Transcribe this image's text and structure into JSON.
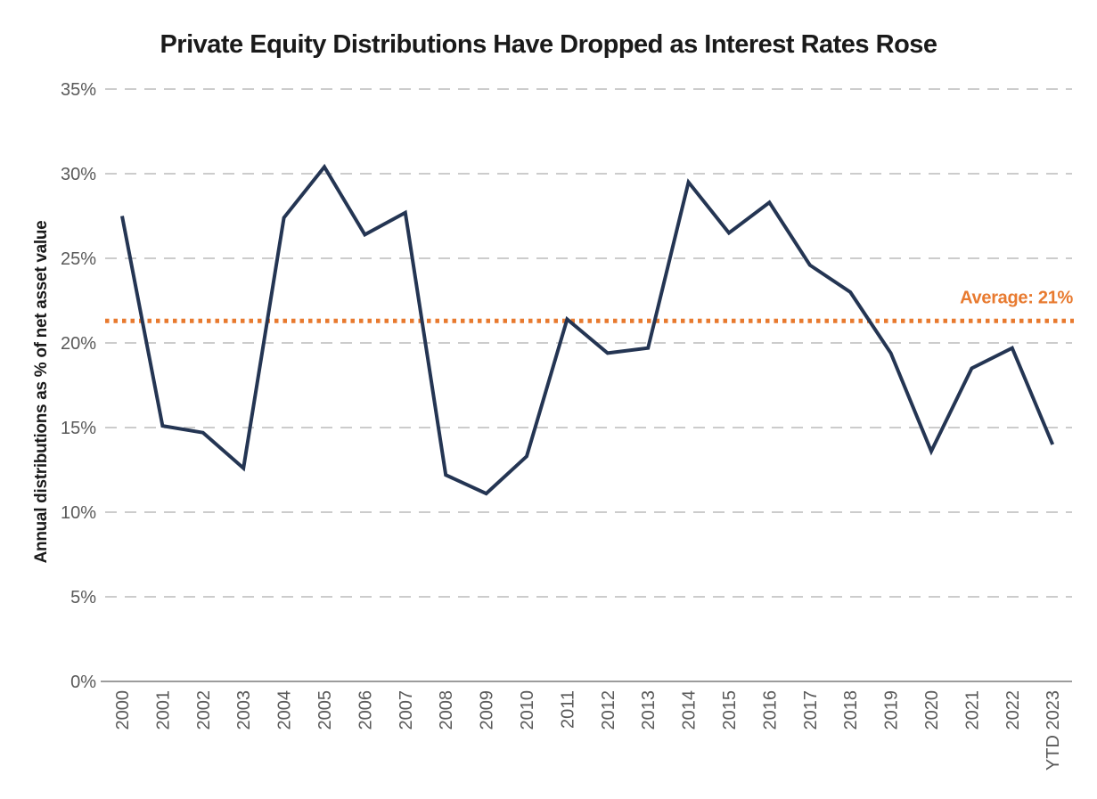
{
  "chart_data": {
    "type": "line",
    "title": "Private Equity Distributions Have Dropped as Interest Rates Rose",
    "ylabel": "Annual distributions as % of net asset value",
    "xlabel": "",
    "categories": [
      "2000",
      "2001",
      "2002",
      "2003",
      "2004",
      "2005",
      "2006",
      "2007",
      "2008",
      "2009",
      "2010",
      "2011",
      "2012",
      "2013",
      "2014",
      "2015",
      "2016",
      "2017",
      "2018",
      "2019",
      "2020",
      "2021",
      "2022",
      "YTD 2023"
    ],
    "values": [
      27.5,
      15.1,
      14.7,
      12.6,
      27.4,
      30.4,
      26.4,
      27.7,
      12.2,
      11.1,
      13.3,
      21.4,
      19.4,
      19.7,
      29.5,
      26.5,
      28.3,
      24.6,
      23.0,
      19.4,
      13.6,
      18.5,
      19.7,
      14.0
    ],
    "ylim": [
      0,
      35
    ],
    "yticks": [
      {
        "value": 0,
        "label": "0%"
      },
      {
        "value": 5,
        "label": "5%"
      },
      {
        "value": 10,
        "label": "10%"
      },
      {
        "value": 15,
        "label": "15%"
      },
      {
        "value": 20,
        "label": "20%"
      },
      {
        "value": 25,
        "label": "25%"
      },
      {
        "value": 30,
        "label": "30%"
      },
      {
        "value": 35,
        "label": "35%"
      }
    ],
    "grid": "dashed-horizontal",
    "legend_position": "none",
    "average_line": {
      "value": 21.3,
      "label": "Average: 21%"
    },
    "colors": {
      "line": "#243553",
      "average": "#E87A2F",
      "grid": "#CCCCCC",
      "axis": "#9C9C9C",
      "tick_label": "#595959",
      "title_text": "#1A1A1A"
    }
  }
}
